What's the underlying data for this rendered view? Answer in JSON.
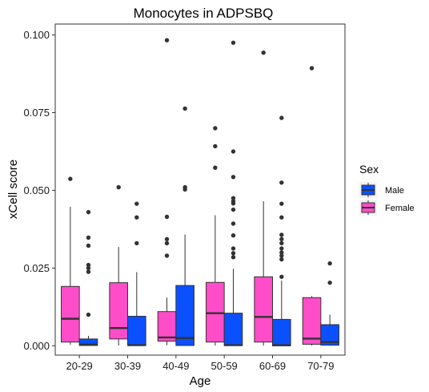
{
  "chart_data": {
    "type": "boxplot",
    "title": "Monocytes in ADPSBQ",
    "xlabel": "Age",
    "ylabel": "xCell score",
    "ylim": [
      -0.003,
      0.1035
    ],
    "yticks": [
      0.0,
      0.025,
      0.05,
      0.075,
      0.1
    ],
    "ytick_labels": [
      "0.000",
      "0.025",
      "0.050",
      "0.075",
      "0.100"
    ],
    "categories": [
      "20-29",
      "30-39",
      "40-49",
      "50-59",
      "60-69",
      "70-79"
    ],
    "grid": false,
    "legend": {
      "title": "Sex",
      "position": "right"
    },
    "series": [
      {
        "name": "Female",
        "color": "#FF4DC9",
        "boxes": [
          {
            "q1": 0.0012,
            "median": 0.0087,
            "q3": 0.0191,
            "whisker_low": 0.0003,
            "whisker_high": 0.0447,
            "outliers": [
              0.0537
            ]
          },
          {
            "q1": 0.0022,
            "median": 0.0057,
            "q3": 0.0203,
            "whisker_low": 0.0001,
            "whisker_high": 0.0318,
            "outliers": [
              0.051
            ]
          },
          {
            "q1": 0.0015,
            "median": 0.0027,
            "q3": 0.011,
            "whisker_low": 0.0002,
            "whisker_high": 0.0155,
            "outliers": [
              0.029,
              0.033,
              0.0343,
              0.0415,
              0.0983
            ]
          },
          {
            "q1": 0.0012,
            "median": 0.0105,
            "q3": 0.0204,
            "whisker_low": 0.0001,
            "whisker_high": 0.042,
            "outliers": [
              0.0573,
              0.0642,
              0.07
            ]
          },
          {
            "q1": 0.0012,
            "median": 0.0093,
            "q3": 0.0222,
            "whisker_low": 0.0001,
            "whisker_high": 0.0465,
            "outliers": [
              0.0943
            ]
          },
          {
            "q1": 0.0005,
            "median": 0.0023,
            "q3": 0.0155,
            "whisker_low": 0.0001,
            "whisker_high": 0.016,
            "outliers": [
              0.0893
            ]
          }
        ]
      },
      {
        "name": "Male",
        "color": "#0A50FF",
        "boxes": [
          {
            "q1": 0.0001,
            "median": 0.0004,
            "q3": 0.0022,
            "whisker_low": 0.0,
            "whisker_high": 0.0032,
            "outliers": [
              0.01,
              0.0238,
              0.025,
              0.026,
              0.0322,
              0.0348,
              0.043
            ]
          },
          {
            "q1": 0.0001,
            "median": 0.0002,
            "q3": 0.0095,
            "whisker_low": 0.0,
            "whisker_high": 0.0237,
            "outliers": [
              0.033,
              0.0413,
              0.0457
            ]
          },
          {
            "q1": 0.0001,
            "median": 0.0025,
            "q3": 0.0194,
            "whisker_low": 0.0,
            "whisker_high": 0.0358,
            "outliers": [
              0.0503,
              0.051,
              0.0763
            ]
          },
          {
            "q1": 0.0001,
            "median": 0.0002,
            "q3": 0.0105,
            "whisker_low": 0.0,
            "whisker_high": 0.0248,
            "outliers": [
              0.0285,
              0.0298,
              0.0313,
              0.0355,
              0.0393,
              0.0438,
              0.0458,
              0.0465,
              0.0475,
              0.0543,
              0.0625,
              0.0975
            ]
          },
          {
            "q1": 0.0,
            "median": 0.0002,
            "q3": 0.0085,
            "whisker_low": 0.0,
            "whisker_high": 0.021,
            "outliers": [
              0.0222,
              0.0278,
              0.029,
              0.03,
              0.0313,
              0.033,
              0.0343,
              0.0357,
              0.0413,
              0.0457,
              0.0525,
              0.0733
            ]
          },
          {
            "q1": 0.0002,
            "median": 0.0012,
            "q3": 0.0068,
            "whisker_low": 0.0,
            "whisker_high": 0.01,
            "outliers": [
              0.0203,
              0.0265
            ]
          }
        ]
      }
    ],
    "legend_order": [
      "Male",
      "Female"
    ]
  }
}
